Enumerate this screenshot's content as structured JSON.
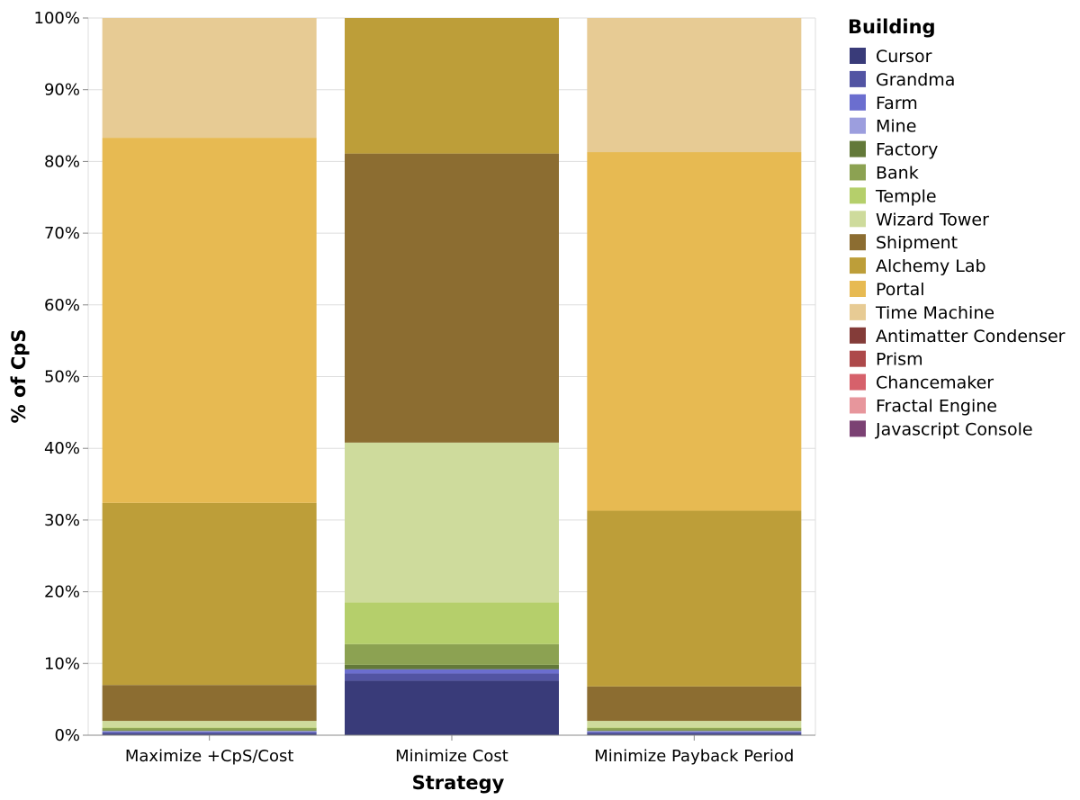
{
  "chart_data": {
    "type": "bar",
    "stacked": true,
    "normalized": true,
    "xlabel": "Strategy",
    "ylabel": "% of CpS",
    "ylim": [
      0,
      100
    ],
    "yticks": [
      "0%",
      "10%",
      "20%",
      "30%",
      "40%",
      "50%",
      "60%",
      "70%",
      "80%",
      "90%",
      "100%"
    ],
    "grid": true,
    "legend_position": "right",
    "legend_title": "Building",
    "categories": [
      "Maximize +CpS/Cost",
      "Minimize Cost",
      "Minimize Payback Period"
    ],
    "series": [
      {
        "name": "Cursor",
        "color": "#393b79",
        "values": [
          0.2,
          7.6,
          0.2
        ]
      },
      {
        "name": "Grandma",
        "color": "#5254a3",
        "values": [
          0.2,
          1.0,
          0.2
        ]
      },
      {
        "name": "Farm",
        "color": "#6b6ecf",
        "values": [
          0.1,
          0.6,
          0.1
        ]
      },
      {
        "name": "Mine",
        "color": "#9c9ede",
        "values": [
          0.1,
          0.0,
          0.1
        ]
      },
      {
        "name": "Factory",
        "color": "#637939",
        "values": [
          0.1,
          0.6,
          0.1
        ]
      },
      {
        "name": "Bank",
        "color": "#8ca252",
        "values": [
          0.3,
          2.9,
          0.3
        ]
      },
      {
        "name": "Temple",
        "color": "#b5cf6b",
        "values": [
          0.1,
          5.8,
          0.1
        ]
      },
      {
        "name": "Wizard Tower",
        "color": "#cedb9c",
        "values": [
          0.9,
          22.3,
          0.9
        ]
      },
      {
        "name": "Shipment",
        "color": "#8c6d31",
        "values": [
          5.0,
          40.3,
          4.8
        ]
      },
      {
        "name": "Alchemy Lab",
        "color": "#bd9e39",
        "values": [
          25.4,
          18.9,
          24.5
        ]
      },
      {
        "name": "Portal",
        "color": "#e7ba52",
        "values": [
          50.9,
          0.0,
          50.0
        ]
      },
      {
        "name": "Time Machine",
        "color": "#e7cb94",
        "values": [
          16.7,
          0.0,
          18.7
        ]
      },
      {
        "name": "Antimatter Condenser",
        "color": "#843c39",
        "values": [
          0,
          0,
          0
        ]
      },
      {
        "name": "Prism",
        "color": "#ad494a",
        "values": [
          0,
          0,
          0
        ]
      },
      {
        "name": "Chancemaker",
        "color": "#d6616b",
        "values": [
          0,
          0,
          0
        ]
      },
      {
        "name": "Fractal Engine",
        "color": "#e7969c",
        "values": [
          0,
          0,
          0
        ]
      },
      {
        "name": "Javascript Console",
        "color": "#7b4173",
        "values": [
          0,
          0,
          0
        ]
      }
    ]
  }
}
